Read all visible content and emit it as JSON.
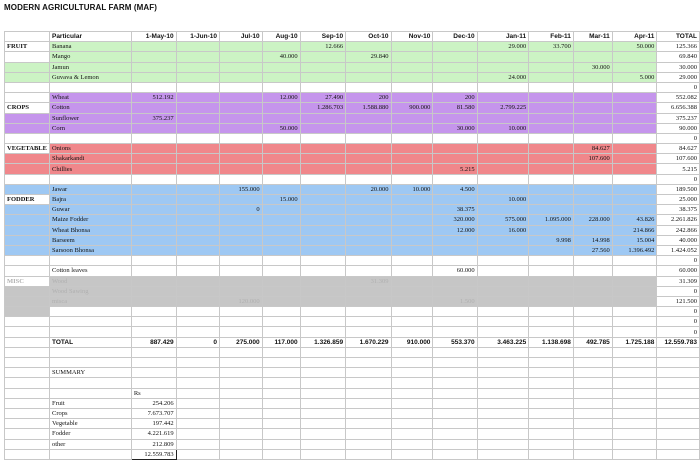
{
  "title": "MODERN AGRICULTURAL FARM (MAF)",
  "header": [
    "Particular",
    "1-May-10",
    "1-Jun-10",
    "Jul-10",
    "Aug-10",
    "Sep-10",
    "Oct-10",
    "Nov-10",
    "Dec-10",
    "Jan-11",
    "Feb-11",
    "Mar-11",
    "Apr-11",
    "TOTAL"
  ],
  "sections": [
    {
      "group": "FRUIT",
      "cls": "fruit",
      "rows": [
        [
          "Banana",
          "",
          "",
          "",
          "",
          "12.666",
          "",
          "",
          "",
          "29.000",
          "33.700",
          "",
          "50.000",
          "125.366"
        ],
        [
          "Mango",
          "",
          "",
          "",
          "40.000",
          "",
          "29.840",
          "",
          "",
          "",
          "",
          "",
          "",
          "69.840"
        ],
        [
          "Jamun",
          "",
          "",
          "",
          "",
          "",
          "",
          "",
          "",
          "",
          "",
          "30.000",
          "",
          "30.000"
        ],
        [
          "Guvava & Lemon",
          "",
          "",
          "",
          "",
          "",
          "",
          "",
          "",
          "24.000",
          "",
          "",
          "5.000",
          "29.000"
        ]
      ]
    },
    {
      "group": "CROPS",
      "cls": "crop",
      "rows": [
        [
          "Wheat",
          "512.192",
          "",
          "",
          "12.000",
          "27.490",
          "200",
          "",
          "200",
          "",
          "",
          "",
          "",
          "552.082"
        ],
        [
          "Cotton",
          "",
          "",
          "",
          "",
          "1.286.703",
          "1.588.880",
          "900.000",
          "81.580",
          "2.799.225",
          "",
          "",
          "",
          "6.656.388"
        ],
        [
          "Sunflower",
          "375.237",
          "",
          "",
          "",
          "",
          "",
          "",
          "",
          "",
          "",
          "",
          "",
          "375.237"
        ],
        [
          "Corn",
          "",
          "",
          "",
          "50.000",
          "",
          "",
          "",
          "30.000",
          "10.000",
          "",
          "",
          "",
          "90.000"
        ]
      ]
    },
    {
      "group": "VEGETABLE",
      "cls": "veg",
      "rows": [
        [
          "Onions",
          "",
          "",
          "",
          "",
          "",
          "",
          "",
          "",
          "",
          "",
          "84.627",
          "",
          "84.627"
        ],
        [
          "Shakarkandi",
          "",
          "",
          "",
          "",
          "",
          "",
          "",
          "",
          "",
          "",
          "107.600",
          "",
          "107.600"
        ],
        [
          "Chillies",
          "",
          "",
          "",
          "",
          "",
          "",
          "",
          "5.215",
          "",
          "",
          "",
          "",
          "5.215"
        ]
      ]
    },
    {
      "group": "FODDER",
      "cls": "fod",
      "rows": [
        [
          "Jawar",
          "",
          "",
          "155.000",
          "",
          "",
          "20.000",
          "10.000",
          "4.500",
          "",
          "",
          "",
          "",
          "189.500"
        ],
        [
          "Bajra",
          "",
          "",
          "",
          "15.000",
          "",
          "",
          "",
          "",
          "10.000",
          "",
          "",
          "",
          "25.000"
        ],
        [
          "Guwar",
          "",
          "",
          "0",
          "",
          "",
          "",
          "",
          "38.375",
          "",
          "",
          "",
          "",
          "38.375"
        ],
        [
          "Maize Fodder",
          "",
          "",
          "",
          "",
          "",
          "",
          "",
          "320.000",
          "575.000",
          "1.095.000",
          "228.000",
          "43.826",
          "2.261.826"
        ],
        [
          "Wheat Bhonsa",
          "",
          "",
          "",
          "",
          "",
          "",
          "",
          "12.000",
          "16.000",
          "",
          "",
          "214.866",
          "242.866"
        ],
        [
          "Barseem",
          "",
          "",
          "",
          "",
          "",
          "",
          "",
          "",
          "",
          "9.998",
          "14.998",
          "15.004",
          "40.000"
        ],
        [
          "Sarsoon Bhonsa",
          "",
          "",
          "",
          "",
          "",
          "",
          "",
          "",
          "",
          "",
          "27.560",
          "1.396.492",
          "1.424.052"
        ]
      ]
    },
    {
      "group": "MISC",
      "cls": "misc",
      "rows": [
        [
          "Cotton leaves",
          "",
          "",
          "",
          "",
          "",
          "",
          "",
          "60.000",
          "",
          "",
          "",
          "",
          "60.000"
        ],
        [
          "Wood",
          "",
          "",
          "",
          "",
          "",
          "31.309",
          "",
          "",
          "",
          "",
          "",
          "",
          "31.309"
        ],
        [
          "Wood Sawing",
          "",
          "",
          "",
          "",
          "",
          "",
          "",
          "",
          "",
          "",
          "",
          "",
          "0"
        ],
        [
          "misca",
          "",
          "",
          "120.000",
          "",
          "",
          "",
          "",
          "1.500",
          "",
          "",
          "",
          "",
          "121.500"
        ]
      ]
    }
  ],
  "totals": [
    "TOTAL",
    "887.429",
    "0",
    "275.000",
    "117.000",
    "1.326.859",
    "1.670.229",
    "910.000",
    "553.370",
    "3.463.225",
    "1.138.698",
    "492.785",
    "1.725.188",
    "12.559.783"
  ],
  "summary": {
    "label": "SUMMARY",
    "unit": "Rs",
    "rows": [
      [
        "Fruit",
        "254.206"
      ],
      [
        "Crops",
        "7.673.707"
      ],
      [
        "Vegetable",
        "197.442"
      ],
      [
        "Fodder",
        "4.221.619"
      ],
      [
        "other",
        "212.809"
      ]
    ],
    "total": "12.559.783"
  },
  "colors": {
    "fruit": "#ccf3c4",
    "crops": "#c595ec",
    "vegetable": "#f0878b",
    "fodder": "#9ec8f3",
    "misc": "#c6c6c6",
    "marker": "#26b026"
  }
}
